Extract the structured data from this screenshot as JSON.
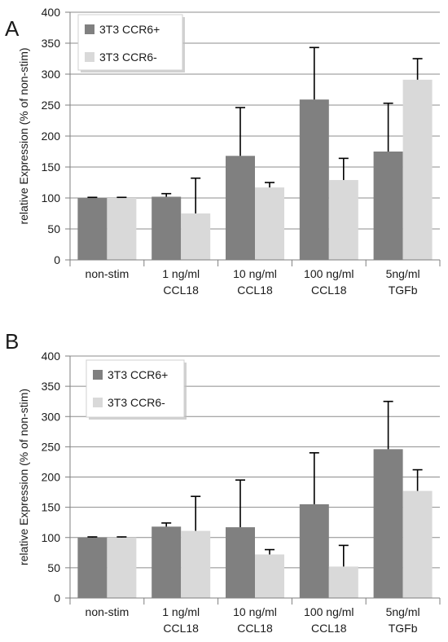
{
  "chart_data": [
    {
      "type": "bar",
      "panel_label": "A",
      "ylabel": "relative Expression (% of non-stim)",
      "ylim": [
        0,
        400
      ],
      "yticks": [
        0,
        50,
        100,
        150,
        200,
        250,
        300,
        350,
        400
      ],
      "categories": [
        [
          "non-stim"
        ],
        [
          "1 ng/ml",
          "CCL18"
        ],
        [
          "10 ng/ml",
          "CCL18"
        ],
        [
          "100 ng/ml",
          "CCL18"
        ],
        [
          "5ng/ml",
          "TGFb"
        ]
      ],
      "legend_position": "top-left",
      "grid": true,
      "series": [
        {
          "name": "3T3 CCR6+",
          "color": "#808080",
          "values": [
            100,
            102,
            168,
            259,
            175
          ],
          "errors": [
            1,
            5,
            78,
            84,
            78
          ]
        },
        {
          "name": "3T3 CCR6-",
          "color": "#d9d9d9",
          "values": [
            100,
            75,
            117,
            129,
            291
          ],
          "errors": [
            1,
            57,
            8,
            35,
            34
          ]
        }
      ]
    },
    {
      "type": "bar",
      "panel_label": "B",
      "ylabel": "relative Expression (% of non-stim)",
      "ylim": [
        0,
        400
      ],
      "yticks": [
        0,
        50,
        100,
        150,
        200,
        250,
        300,
        350,
        400
      ],
      "categories": [
        [
          "non-stim"
        ],
        [
          "1 ng/ml",
          "CCL18"
        ],
        [
          "10 ng/ml",
          "CCL18"
        ],
        [
          "100 ng/ml",
          "CCL18"
        ],
        [
          "5ng/ml",
          "TGFb"
        ]
      ],
      "legend_position": "top-left",
      "grid": true,
      "series": [
        {
          "name": "3T3 CCR6+",
          "color": "#808080",
          "values": [
            100,
            118,
            117,
            155,
            246
          ],
          "errors": [
            1,
            6,
            78,
            85,
            79
          ]
        },
        {
          "name": "3T3 CCR6-",
          "color": "#d9d9d9",
          "values": [
            100,
            111,
            72,
            52,
            177
          ],
          "errors": [
            1,
            57,
            8,
            35,
            35
          ]
        }
      ]
    }
  ]
}
